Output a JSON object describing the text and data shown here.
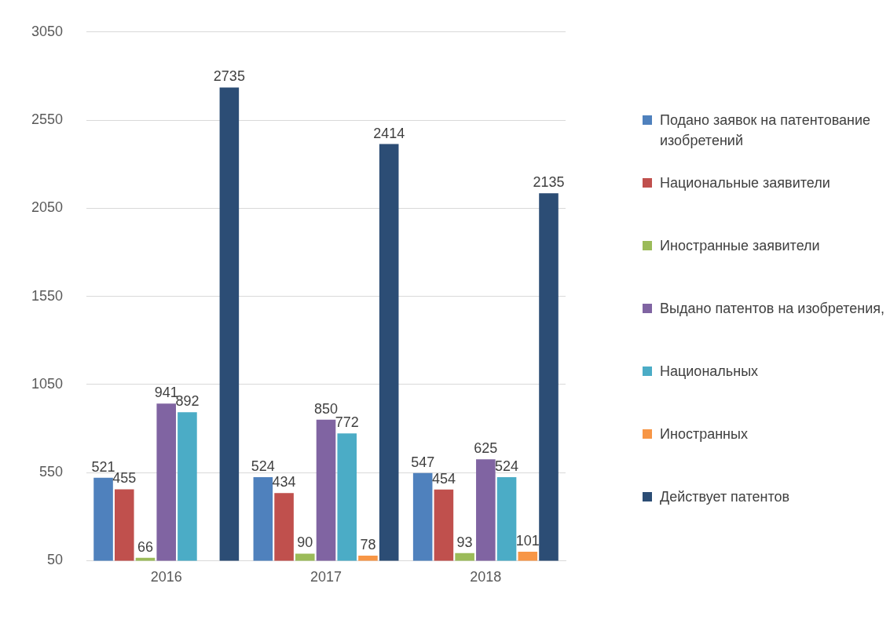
{
  "chart_data": {
    "type": "bar",
    "categories": [
      "2016",
      "2017",
      "2018"
    ],
    "series": [
      {
        "name": "Подано заявок на патентование изобретений",
        "color": "#4f81bd",
        "values": [
          521,
          524,
          547
        ]
      },
      {
        "name": "Национальные заявители",
        "color": "#c0504d",
        "values": [
          455,
          434,
          454
        ]
      },
      {
        "name": "Иностранные заявители",
        "color": "#9bbb59",
        "values": [
          66,
          90,
          93
        ]
      },
      {
        "name": "Выдано патентов на изобретения,",
        "color": "#8064a2",
        "values": [
          941,
          850,
          625
        ]
      },
      {
        "name": "Национальных",
        "color": "#4bacc6",
        "values": [
          892,
          772,
          524
        ]
      },
      {
        "name": "Иностранных",
        "color": "#f79646",
        "values": [
          null,
          78,
          101
        ]
      },
      {
        "name": "Действует патентов",
        "color": "#2c4d75",
        "values": [
          2735,
          2414,
          2135
        ]
      }
    ],
    "ylim": [
      50,
      3050
    ],
    "yticks": [
      50,
      550,
      1050,
      1550,
      2050,
      2550,
      3050
    ],
    "grid": "y",
    "legend": "right",
    "data_labels": true
  }
}
